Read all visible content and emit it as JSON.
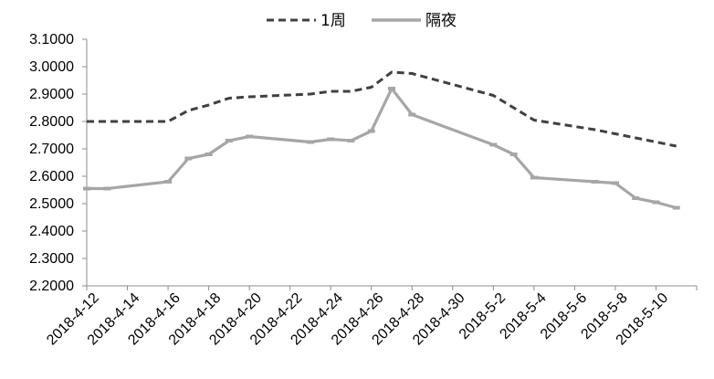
{
  "chart_data": {
    "type": "line",
    "title": "",
    "xlabel": "",
    "ylabel": "",
    "ylim": [
      2.2,
      3.1
    ],
    "yticks": [
      "2.2000",
      "2.3000",
      "2.4000",
      "2.5000",
      "2.6000",
      "2.7000",
      "2.8000",
      "2.9000",
      "3.0000",
      "3.1000"
    ],
    "xlim": [
      "2018-4-12",
      "2018-5-12"
    ],
    "xticks": [
      "2018-4-12",
      "2018-4-14",
      "2018-4-16",
      "2018-4-18",
      "2018-4-20",
      "2018-4-22",
      "2018-4-24",
      "2018-4-26",
      "2018-4-28",
      "2018-4-30",
      "2018-5-2",
      "2018-5-4",
      "2018-5-6",
      "2018-5-8",
      "2018-5-10"
    ],
    "grid": false,
    "legend_position": "top",
    "series": [
      {
        "name": "1周",
        "style": "dashed",
        "color": "#404040",
        "x": [
          "2018-4-12",
          "2018-4-13",
          "2018-4-16",
          "2018-4-17",
          "2018-4-18",
          "2018-4-19",
          "2018-4-20",
          "2018-4-23",
          "2018-4-24",
          "2018-4-25",
          "2018-4-26",
          "2018-4-27",
          "2018-4-28",
          "2018-5-2",
          "2018-5-3",
          "2018-5-4",
          "2018-5-7",
          "2018-5-8",
          "2018-5-9",
          "2018-5-10",
          "2018-5-11"
        ],
        "values": [
          2.8,
          2.8,
          2.8,
          2.84,
          2.86,
          2.885,
          2.89,
          2.9,
          2.91,
          2.91,
          2.925,
          2.98,
          2.975,
          2.895,
          2.85,
          2.805,
          2.77,
          2.755,
          2.74,
          2.725,
          2.71
        ]
      },
      {
        "name": "隔夜",
        "style": "solid",
        "color": "#a6a6a6",
        "x": [
          "2018-4-12",
          "2018-4-13",
          "2018-4-16",
          "2018-4-17",
          "2018-4-18",
          "2018-4-19",
          "2018-4-20",
          "2018-4-23",
          "2018-4-24",
          "2018-4-25",
          "2018-4-26",
          "2018-4-27",
          "2018-4-28",
          "2018-5-2",
          "2018-5-3",
          "2018-5-4",
          "2018-5-7",
          "2018-5-8",
          "2018-5-9",
          "2018-5-10",
          "2018-5-11"
        ],
        "values": [
          2.555,
          2.555,
          2.58,
          2.665,
          2.68,
          2.73,
          2.745,
          2.725,
          2.735,
          2.73,
          2.765,
          2.92,
          2.825,
          2.715,
          2.68,
          2.595,
          2.58,
          2.575,
          2.52,
          2.505,
          2.485
        ]
      }
    ]
  }
}
